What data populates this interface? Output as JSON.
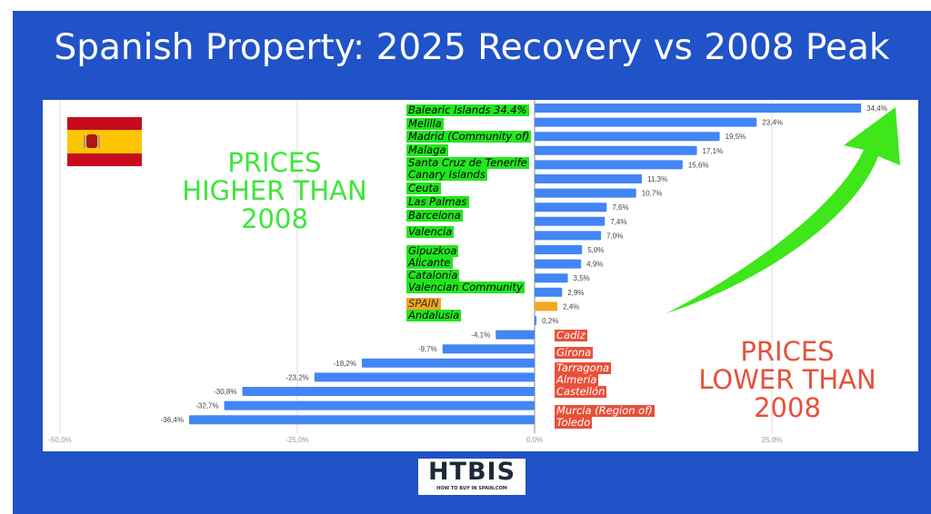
{
  "title": "Spanish Property: 2025 Recovery vs 2008 Peak",
  "annotations": {
    "higher": [
      "PRICES",
      "HIGHER THAN",
      "2008"
    ],
    "lower": [
      "PRICES",
      "LOWER THAN",
      "2008"
    ]
  },
  "logo": {
    "name": "HTBIS",
    "tagline": "HOW TO BUY IN SPAIN.COM"
  },
  "colors": {
    "background": "#2052c8",
    "bar": "#4285f4",
    "spain_bar": "#f5a623",
    "positive_label": "#22e61e",
    "negative_label": "#e8503a",
    "arrow": "#3ee61a"
  },
  "chart_data": {
    "type": "bar",
    "orientation": "horizontal",
    "categories": [
      "Balearic Islands 34.4%",
      "Melilla",
      "Madrid (Community of)",
      "Malaga",
      "Santa Cruz de Tenerife",
      "Canary Islands",
      "Ceuta",
      "Las Palmas",
      "Barcelona",
      "Valencia",
      "Gipuzkoa",
      "Alicante",
      "Catalonia",
      "Valencian Community",
      "SPAIN",
      "Andalusia",
      "Cadiz",
      "Girona",
      "Tarragona",
      "Almería",
      "Castellón",
      "Murcia (Region of)",
      "Toledo"
    ],
    "values": [
      34.4,
      23.4,
      19.5,
      17.1,
      15.6,
      11.3,
      10.7,
      7.6,
      7.4,
      7.0,
      5.0,
      4.9,
      3.5,
      2.9,
      2.4,
      0.2,
      -4.1,
      -9.7,
      -18.2,
      -23.2,
      -30.8,
      -32.7,
      -36.4
    ],
    "data_labels": [
      "34,4%",
      "23,4%",
      "19,5%",
      "17,1%",
      "15,6%",
      "11,3%",
      "10,7%",
      "7,6%",
      "7,4%",
      "7,0%",
      "5,0%",
      "4,9%",
      "3,5%",
      "2,9%",
      "2,4%",
      "0,2%",
      "-4,1%",
      "-9,7%",
      "-18,2%",
      "-23,2%",
      "-30,8%",
      "-32,7%",
      "-36,4%"
    ],
    "highlight": "SPAIN",
    "xlim": [
      -50,
      35
    ],
    "xticks": [
      "-50,0%",
      "-25,0%",
      "0,0%",
      "25,0%"
    ],
    "xtick_values": [
      -50,
      -25,
      0,
      25
    ],
    "grid": true,
    "legend": "none"
  }
}
